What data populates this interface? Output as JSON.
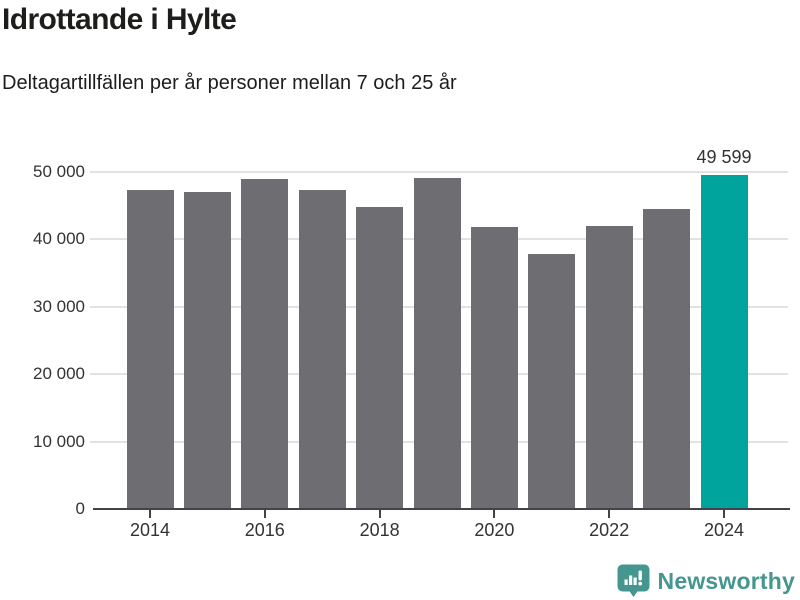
{
  "chart_data": {
    "type": "bar",
    "title": "Idrottande i Hylte",
    "subtitle": "Deltagartillfällen per år personer mellan 7 och 25 år",
    "categories": [
      "2014",
      "2015",
      "2016",
      "2017",
      "2018",
      "2019",
      "2020",
      "2021",
      "2022",
      "2023",
      "2024"
    ],
    "values": [
      47400,
      47100,
      48900,
      47400,
      44800,
      49100,
      41900,
      37800,
      42000,
      44500,
      49599
    ],
    "highlight_index": 10,
    "highlight_value_label": "49 599",
    "xlabel": "",
    "ylabel": "",
    "ylim": [
      0,
      50000
    ],
    "y_ticks": [
      {
        "value": 0,
        "label": "0"
      },
      {
        "value": 10000,
        "label": "10 000"
      },
      {
        "value": 20000,
        "label": "20 000"
      },
      {
        "value": 30000,
        "label": "30 000"
      },
      {
        "value": 40000,
        "label": "40 000"
      },
      {
        "value": 50000,
        "label": "50 000"
      }
    ],
    "x_ticks": [
      "2014",
      "2016",
      "2018",
      "2020",
      "2022",
      "2024"
    ],
    "grid": true,
    "legend": "none",
    "colors": {
      "bar": "#6d6d72",
      "highlight": "#00a49c",
      "grid": "#e2e2e2",
      "axis": "#43434a",
      "tick_text": "#333333",
      "title_text": "#1d1d1b"
    }
  },
  "footer": {
    "brand": "Newsworthy",
    "brand_color": "#45968f",
    "logo_icon": "newsworthy-speech-bubble-barchart-icon"
  }
}
